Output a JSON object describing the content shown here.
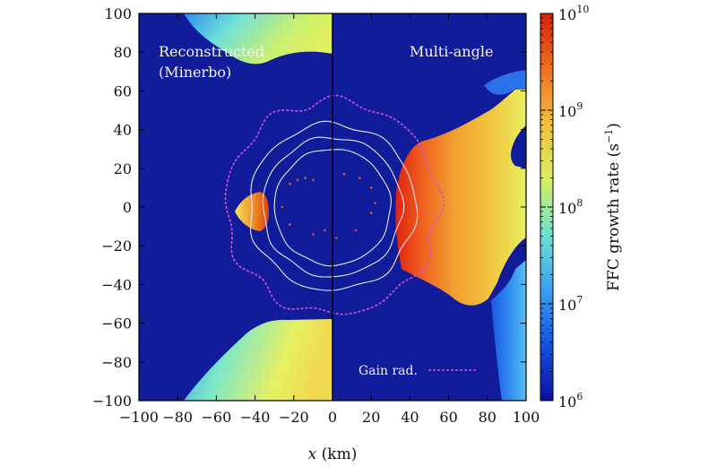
{
  "chart_data": {
    "type": "heatmap",
    "panels": [
      {
        "label_lines": [
          "Reconstructed",
          "(Minerbo)"
        ],
        "side": "left"
      },
      {
        "label_lines": [
          "Multi-angle"
        ],
        "side": "right"
      }
    ],
    "xlabel_var": "x",
    "xlabel_unit": " (km)",
    "xlim": [
      -100,
      100
    ],
    "ylim": [
      -100,
      100
    ],
    "x_ticks": [
      -100,
      -80,
      -60,
      -40,
      -20,
      0,
      20,
      40,
      60,
      80,
      100
    ],
    "y_ticks": [
      -100,
      -80,
      -60,
      -40,
      -20,
      0,
      20,
      40,
      60,
      80,
      100
    ],
    "x_tick_labels": [
      "−100",
      "−80",
      "−60",
      "−40",
      "−20",
      "0",
      "20",
      "40",
      "60",
      "80",
      "100"
    ],
    "y_tick_labels": [
      "−100",
      "−80",
      "−60",
      "−40",
      "−20",
      "0",
      "20",
      "40",
      "60",
      "80",
      "100"
    ],
    "colorbar": {
      "label_main": "FFC growth rate (s",
      "label_sup": "−1",
      "label_end": ")",
      "scale": "log",
      "range": [
        1000000,
        10000000000
      ],
      "ticks": [
        {
          "base": "10",
          "exp": "6"
        },
        {
          "base": "10",
          "exp": "7"
        },
        {
          "base": "10",
          "exp": "8"
        },
        {
          "base": "10",
          "exp": "9"
        },
        {
          "base": "10",
          "exp": "10"
        }
      ],
      "colors": [
        "#0a0fa0",
        "#1550e0",
        "#3aa0f0",
        "#6ee0d0",
        "#d8f060",
        "#f0c040",
        "#f07020",
        "#d02010"
      ]
    },
    "background_color": "#101c9a",
    "regions": [
      {
        "name": "top-left-plume",
        "panel": "left",
        "level": "1e8"
      },
      {
        "name": "bottom-left-plume",
        "panel": "left",
        "level": "1e9"
      },
      {
        "name": "left-blob",
        "panel": "left",
        "level": "1e9.8"
      },
      {
        "name": "right-wedge",
        "panel": "right",
        "level": "1e9.5"
      },
      {
        "name": "right-edge-tongue",
        "panel": "right",
        "level": "1e7"
      }
    ],
    "contours_radii_km": [
      30,
      36,
      43
    ],
    "gain_radius_km": 55,
    "legend": [
      {
        "label": "Gain rad.",
        "color": "#d84fd8",
        "style": "dashed"
      }
    ]
  }
}
